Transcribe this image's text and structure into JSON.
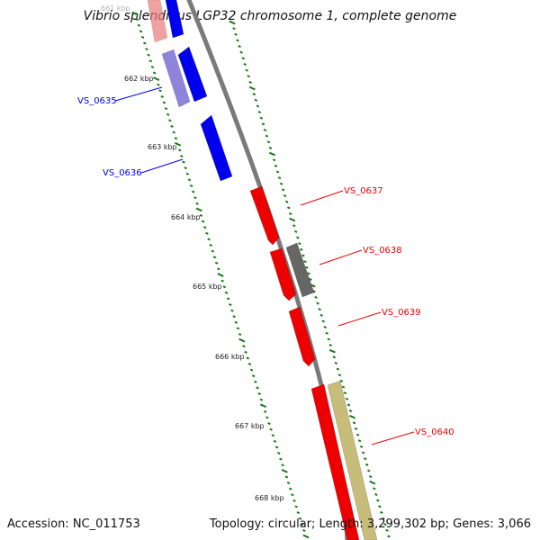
{
  "title": "Vibrio splendidus LGP32 chromosome 1, complete genome",
  "accession_label": "Accession: NC_011753",
  "stats_label": "Topology: circular; Length: 3,299,302 bp; Genes: 3,066",
  "colors": {
    "backbone": "#7a7a7a",
    "tick": "#1a7a1a",
    "forward_strand": "#ee0000",
    "reverse_strand": "#0000ee",
    "reverse_faded": "#7b6fd6",
    "forward_faded": "#ec7a7a",
    "other_gray": "#666666",
    "other_khaki": "#c8bc7a"
  },
  "scale": {
    "unit": "kbp",
    "labels": [
      "661 kbp",
      "662 kbp",
      "663 kbp",
      "664 kbp",
      "665 kbp",
      "666 kbp",
      "667 kbp",
      "668 kbp"
    ]
  },
  "genes": [
    {
      "label": "VS_0635",
      "strand": "reverse",
      "color_key": "reverse_strand"
    },
    {
      "label": "VS_0636",
      "strand": "reverse",
      "color_key": "reverse_strand"
    },
    {
      "label": "VS_0637",
      "strand": "forward",
      "color_key": "forward_strand"
    },
    {
      "label": "VS_0638",
      "strand": "forward",
      "color_key": "forward_strand"
    },
    {
      "label": "VS_0639",
      "strand": "forward",
      "color_key": "forward_strand"
    },
    {
      "label": "VS_0640",
      "strand": "forward",
      "color_key": "forward_strand"
    }
  ]
}
